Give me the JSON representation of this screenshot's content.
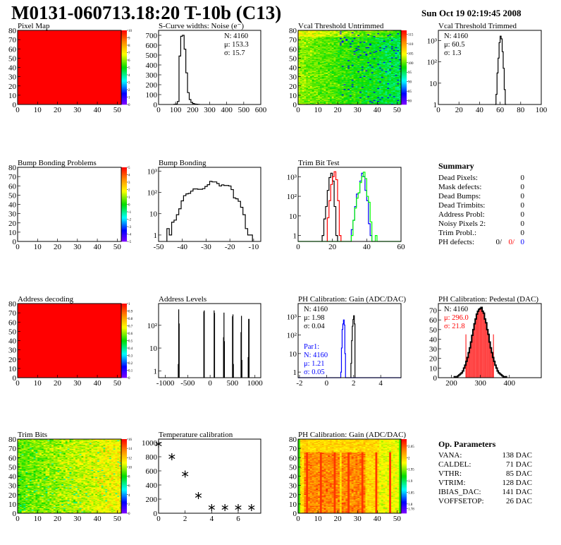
{
  "header": {
    "title": "M0131-060713.18:20 T-10b (C13)",
    "datetime": "Sun Oct 19 02:19:45 2008"
  },
  "summary": {
    "title": "Summary",
    "rows": [
      {
        "label": "Dead Pixels:",
        "value": "0"
      },
      {
        "label": "Mask defects:",
        "value": "0"
      },
      {
        "label": "Dead Bumps:",
        "value": "0"
      },
      {
        "label": "Dead Trimbits:",
        "value": "0"
      },
      {
        "label": "Address Probl:",
        "value": "0"
      },
      {
        "label": "Noisy Pixels 2:",
        "value": "0"
      },
      {
        "label": "Trim Probl.:",
        "value": "0"
      }
    ],
    "ph_defects": {
      "label": "PH defects:",
      "values": [
        {
          "text": "0/",
          "color": "#000000"
        },
        {
          "text": "0/",
          "color": "#ff0000"
        },
        {
          "text": "0",
          "color": "#0000ff"
        }
      ]
    }
  },
  "op_params": {
    "title": "Op. Parameters",
    "rows": [
      {
        "label": "VANA:",
        "value": "138 DAC"
      },
      {
        "label": "CALDEL:",
        "value": "71 DAC"
      },
      {
        "label": "VTHR:",
        "value": "85 DAC"
      },
      {
        "label": "VTRIM:",
        "value": "128 DAC"
      },
      {
        "label": "IBIAS_DAC:",
        "value": "141 DAC"
      },
      {
        "label": "VOFFSETOP:",
        "value": "26 DAC"
      }
    ]
  },
  "chart_data": [
    {
      "id": "pixel-map",
      "type": "heatmap",
      "title": "Pixel Map",
      "xlim": [
        0,
        52
      ],
      "ylim": [
        0,
        80
      ],
      "xticks": [
        0,
        10,
        20,
        30,
        40,
        50
      ],
      "yticks": [
        0,
        10,
        20,
        30,
        40,
        50,
        60,
        70,
        80
      ],
      "zlim": [
        0,
        10
      ],
      "zticks": [
        0,
        1,
        2,
        3,
        4,
        5,
        6,
        7,
        8,
        9,
        10
      ],
      "pattern": "uniform",
      "value": 10
    },
    {
      "id": "noise",
      "type": "bar",
      "title": "S-Curve widths: Noise (e⁻)",
      "xlim": [
        0,
        600
      ],
      "ylim": [
        0,
        750
      ],
      "xticks": [
        0,
        100,
        200,
        300,
        400,
        500,
        600
      ],
      "yticks": [
        0,
        100,
        200,
        300,
        400,
        500,
        600,
        700
      ],
      "bins": {
        "start": 90,
        "width": 10,
        "series": [
          {
            "color": "#000000",
            "values": [
              2,
              5,
              30,
              490,
              690,
              700,
              560,
              320,
              120,
              50,
              20,
              10,
              5,
              3,
              1
            ]
          }
        ]
      },
      "stats": [
        {
          "text": "N: 4160",
          "color": "#000000"
        },
        {
          "text": "μ: 153.3",
          "color": "#000000"
        },
        {
          "text": "σ: 15.7",
          "color": "#000000"
        }
      ],
      "stats_pos": "top-right"
    },
    {
      "id": "vcal-untrimmed",
      "type": "heatmap",
      "title": "Vcal Threshold Untrimmed",
      "xlim": [
        0,
        52
      ],
      "ylim": [
        0,
        80
      ],
      "xticks": [
        0,
        10,
        20,
        30,
        40,
        50
      ],
      "yticks": [
        0,
        10,
        20,
        30,
        40,
        50,
        60,
        70,
        80
      ],
      "zlim": [
        78,
        117
      ],
      "zticks": [
        80,
        85,
        90,
        95,
        100,
        105,
        110,
        115
      ],
      "pattern": "vcal"
    },
    {
      "id": "vcal-trimmed",
      "type": "bar",
      "title": "Vcal Threshold Trimmed",
      "xlim": [
        0,
        100
      ],
      "ylim": [
        1,
        3000
      ],
      "log_y": true,
      "xticks": [
        0,
        20,
        40,
        60,
        80,
        100
      ],
      "yticks": [
        1,
        10,
        100,
        1000
      ],
      "ytick_labels": [
        "1",
        "10",
        "10²",
        "10³"
      ],
      "bins": {
        "start": 55,
        "width": 1,
        "series": [
          {
            "color": "#000000",
            "values": [
              0,
              3,
              30,
              150,
              800,
              1600,
              1200,
              300,
              50,
              5,
              0
            ]
          }
        ]
      },
      "stats": [
        {
          "text": "N: 4160",
          "color": "#000000"
        },
        {
          "text": "μ: 60.5",
          "color": "#000000"
        },
        {
          "text": "σ:  1.3",
          "color": "#000000"
        }
      ],
      "stats_pos": "top-left"
    },
    {
      "id": "bump-map",
      "type": "heatmap",
      "title": "Bump Bonding Problems",
      "xlim": [
        0,
        52
      ],
      "ylim": [
        0,
        80
      ],
      "xticks": [
        0,
        10,
        20,
        30,
        40,
        50
      ],
      "yticks": [
        0,
        10,
        20,
        30,
        40,
        50,
        60,
        70,
        80
      ],
      "zlim": [
        -5,
        5
      ],
      "zticks": [
        -5,
        -4,
        -3,
        -2,
        -1,
        0,
        1,
        2,
        3,
        4,
        5
      ],
      "pattern": "empty"
    },
    {
      "id": "bump-bonding",
      "type": "bar",
      "title": "Bump Bonding",
      "xlim": [
        -50,
        -7
      ],
      "ylim": [
        0.5,
        1500
      ],
      "log_y": true,
      "xticks": [
        -50,
        -40,
        -30,
        -20,
        -10
      ],
      "yticks": [
        1,
        10,
        100,
        1000
      ],
      "ytick_labels": [
        "1",
        "10",
        "10²",
        "10³"
      ],
      "bins": {
        "start": -46.5,
        "width": 1,
        "series": [
          {
            "color": "#000000",
            "values": [
              2,
              1,
              4,
              5,
              9,
              17,
              40,
              70,
              85,
              90,
              115,
              145,
              145,
              140,
              140,
              150,
              190,
              230,
              330,
              310,
              310,
              260,
              200,
              225,
              210,
              210,
              200,
              135,
              55,
              50,
              38,
              20,
              9,
              2,
              1,
              1
            ]
          }
        ]
      }
    },
    {
      "id": "trim-bit-test",
      "type": "bar",
      "title": "Trim Bit Test",
      "xlim": [
        0,
        60
      ],
      "ylim": [
        0.5,
        3000
      ],
      "log_y": true,
      "xticks": [
        0,
        20,
        40,
        60
      ],
      "yticks": [
        1,
        10,
        100,
        1000
      ],
      "ytick_labels": [
        "1",
        "10",
        "10²",
        "10³"
      ],
      "bins": {
        "start": 0,
        "width": 1,
        "series": [
          {
            "color": "#000000",
            "offset": 14,
            "values": [
              1,
              7,
              30,
              200,
              900,
              1500,
              600,
              30,
              1
            ]
          },
          {
            "color": "#ff0000",
            "offset": 17,
            "values": [
              8,
              60,
              400,
              1000,
              1800,
              700,
              60,
              1
            ]
          },
          {
            "color": "#0000ff",
            "offset": 31,
            "values": [
              2,
              6,
              30,
              130,
              150,
              600,
              1500,
              1000,
              200,
              60,
              4,
              1
            ]
          },
          {
            "color": "#00ff00",
            "offset": 31,
            "values": [
              1,
              6,
              25,
              80,
              150,
              500,
              1000,
              1700,
              800,
              100,
              50,
              5,
              0,
              0,
              1
            ],
            "baseline": true
          }
        ]
      }
    },
    {
      "id": "address-decoding",
      "type": "heatmap",
      "title": "Address decoding",
      "xlim": [
        0,
        52
      ],
      "ylim": [
        0,
        80
      ],
      "xticks": [
        0,
        10,
        20,
        30,
        40,
        50
      ],
      "yticks": [
        0,
        10,
        20,
        30,
        40,
        50,
        60,
        70,
        80
      ],
      "zlim": [
        0,
        1
      ],
      "zticks": [
        0,
        0.1,
        0.2,
        0.3,
        0.4,
        0.5,
        0.6,
        0.7,
        0.8,
        0.9,
        1
      ],
      "pattern": "uniform",
      "value": 1
    },
    {
      "id": "address-levels",
      "type": "spikes",
      "title": "Address Levels",
      "xlim": [
        -1150,
        1130
      ],
      "ylim": [
        0.5,
        900
      ],
      "log_y": true,
      "xticks": [
        -1000,
        -500,
        0,
        500,
        1000
      ],
      "yticks": [
        1,
        10,
        100
      ],
      "ytick_labels": [
        "1",
        "10",
        "10²"
      ],
      "bin_width": 10,
      "peaks": [
        [
          -720,
          2
        ],
        [
          -710,
          500
        ],
        [
          -700,
          120
        ],
        [
          -150,
          400
        ],
        [
          -140,
          450
        ],
        [
          80,
          450
        ],
        [
          90,
          350
        ],
        [
          290,
          30
        ],
        [
          300,
          360
        ],
        [
          310,
          20
        ],
        [
          490,
          250
        ],
        [
          500,
          300
        ],
        [
          510,
          2
        ],
        [
          680,
          50
        ],
        [
          690,
          260
        ],
        [
          700,
          3
        ],
        [
          840,
          4
        ],
        [
          850,
          190
        ],
        [
          860,
          190
        ]
      ]
    },
    {
      "id": "ph-gain",
      "type": "bar",
      "title": "PH Calibration: Gain (ADC/DAC)",
      "xlim": [
        -2.1,
        5.5
      ],
      "ylim": [
        0.5,
        5000
      ],
      "log_y": true,
      "xticks": [
        -2,
        0,
        2,
        4
      ],
      "yticks": [
        1,
        10,
        100,
        1000
      ],
      "ytick_labels": [
        "1",
        "10",
        "10²",
        "10³"
      ],
      "bins": {
        "start": -1,
        "width": 0.05,
        "series": [
          {
            "color": "#000000",
            "offset": 56,
            "values": [
              3,
              50,
              300,
              700,
              1100,
              400
            ]
          },
          {
            "color": "#0000ff",
            "offset": 41,
            "values": [
              1,
              20,
              200,
              400,
              650,
              350,
              10
            ],
            "baseline": true
          }
        ]
      },
      "stats": [
        {
          "text": "N: 4160",
          "color": "#000000"
        },
        {
          "text": "μ: 1.98",
          "color": "#000000"
        },
        {
          "text": "σ: 0.04",
          "color": "#000000"
        }
      ],
      "stats2": [
        {
          "text": "Par1:",
          "color": "#0000ff"
        },
        {
          "text": "N: 4160",
          "color": "#0000ff"
        },
        {
          "text": "μ: 1.21",
          "color": "#0000ff"
        },
        {
          "text": "σ: 0.05",
          "color": "#0000ff"
        }
      ],
      "stats_pos": "top-left"
    },
    {
      "id": "ph-pedestal",
      "type": "bar",
      "title": "PH Calibration: Pedestal (DAC)",
      "xlim": [
        155,
        510
      ],
      "ylim": [
        0,
        77
      ],
      "xticks": [
        200,
        300,
        400
      ],
      "yticks": [
        0,
        10,
        20,
        30,
        40,
        50,
        60,
        70
      ],
      "bins": {
        "start": 210,
        "width": 4,
        "series": [
          {
            "color": "#000000",
            "thick": true,
            "values": [
              1,
              1,
              1,
              2,
              3,
              4,
              5,
              7,
              10,
              13,
              17,
              21,
              26,
              31,
              37,
              44,
              50,
              56,
              61,
              66,
              69,
              71,
              72,
              73,
              69,
              67,
              61,
              57,
              50,
              45,
              37,
              31,
              26,
              21,
              17,
              13,
              10,
              7,
              5,
              4,
              3,
              2,
              1,
              1,
              1
            ]
          }
        ]
      },
      "fill_range": [
        250,
        345
      ],
      "fill_color": "#ff0000",
      "stats": [
        {
          "text": "N: 4160",
          "color": "#000000"
        },
        {
          "text": "μ: 296.0",
          "color": "#ff0000"
        },
        {
          "text": "σ: 21.8",
          "color": "#ff0000"
        }
      ],
      "stats_pos": "top-left"
    },
    {
      "id": "trim-bits",
      "type": "heatmap",
      "title": "Trim Bits",
      "xlim": [
        0,
        52
      ],
      "ylim": [
        0,
        80
      ],
      "xticks": [
        0,
        10,
        20,
        30,
        40,
        50
      ],
      "yticks": [
        0,
        10,
        20,
        30,
        40,
        50,
        60,
        70,
        80
      ],
      "zlim": [
        0,
        16
      ],
      "zticks": [
        0,
        2,
        4,
        6,
        8,
        10,
        12,
        14,
        16
      ],
      "pattern": "trim"
    },
    {
      "id": "temperature",
      "type": "scatter",
      "title": "Temperature calibration",
      "xlim": [
        0,
        7.7
      ],
      "ylim": [
        0,
        1050
      ],
      "xticks": [
        0,
        2,
        4,
        6
      ],
      "yticks": [
        0,
        200,
        400,
        600,
        800,
        1000
      ],
      "x": [
        0,
        1,
        2,
        3,
        4,
        5,
        6,
        7
      ],
      "y": [
        980,
        800,
        555,
        250,
        80,
        80,
        80,
        80
      ]
    },
    {
      "id": "ph-gain-map",
      "type": "heatmap",
      "title": "PH Calibration: Gain (ADC/DAC)",
      "xlim": [
        0,
        52
      ],
      "ylim": [
        0,
        80
      ],
      "xticks": [
        0,
        10,
        20,
        30,
        40,
        50
      ],
      "yticks": [
        0,
        10,
        20,
        30,
        40,
        50,
        60,
        70,
        80
      ],
      "zlim": [
        1.76,
        2.08
      ],
      "zticks": [
        1.78,
        1.8,
        1.85,
        1.9,
        1.95,
        2,
        2.05
      ],
      "pattern": "phgain"
    }
  ]
}
